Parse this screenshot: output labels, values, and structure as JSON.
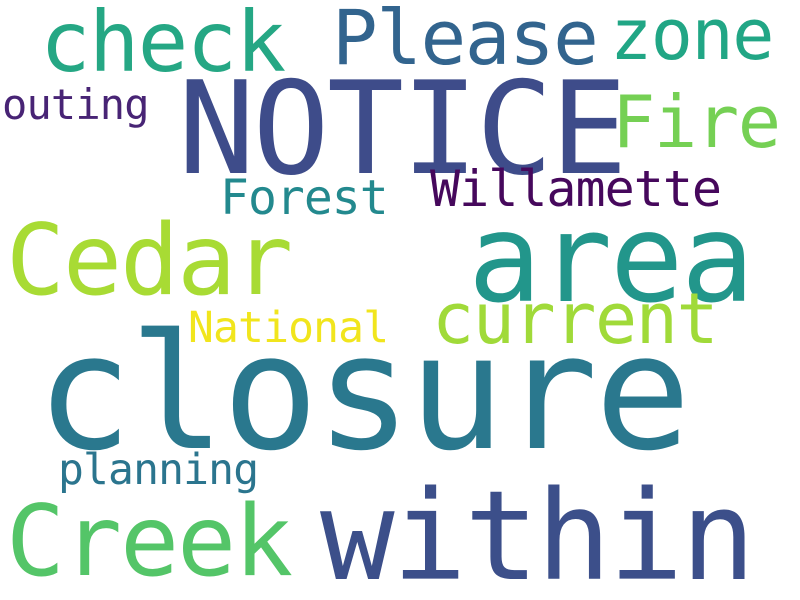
{
  "words": {
    "notice": {
      "text": "NOTICE",
      "color": "#3e4c8a"
    },
    "area": {
      "text": "area",
      "color": "#22968b"
    },
    "closure": {
      "text": "closure",
      "color": "#2a788e"
    },
    "within": {
      "text": "within",
      "color": "#3c4f8a"
    },
    "creek": {
      "text": "Creek",
      "color": "#54c568"
    },
    "cedar": {
      "text": "Cedar",
      "color": "#a8db34"
    },
    "check": {
      "text": "check",
      "color": "#25a784"
    },
    "please": {
      "text": "Please",
      "color": "#32648e"
    },
    "zone": {
      "text": "zone",
      "color": "#21a685"
    },
    "fire": {
      "text": "Fire",
      "color": "#75d054"
    },
    "current": {
      "text": "current",
      "color": "#a0da39"
    },
    "willamette": {
      "text": "Willamette",
      "color": "#46085c"
    },
    "forest": {
      "text": "Forest",
      "color": "#23898e"
    },
    "outing": {
      "text": "outing",
      "color": "#482475"
    },
    "national": {
      "text": "National",
      "color": "#f1e51d"
    },
    "planning": {
      "text": "planning",
      "color": "#2b758e"
    }
  }
}
